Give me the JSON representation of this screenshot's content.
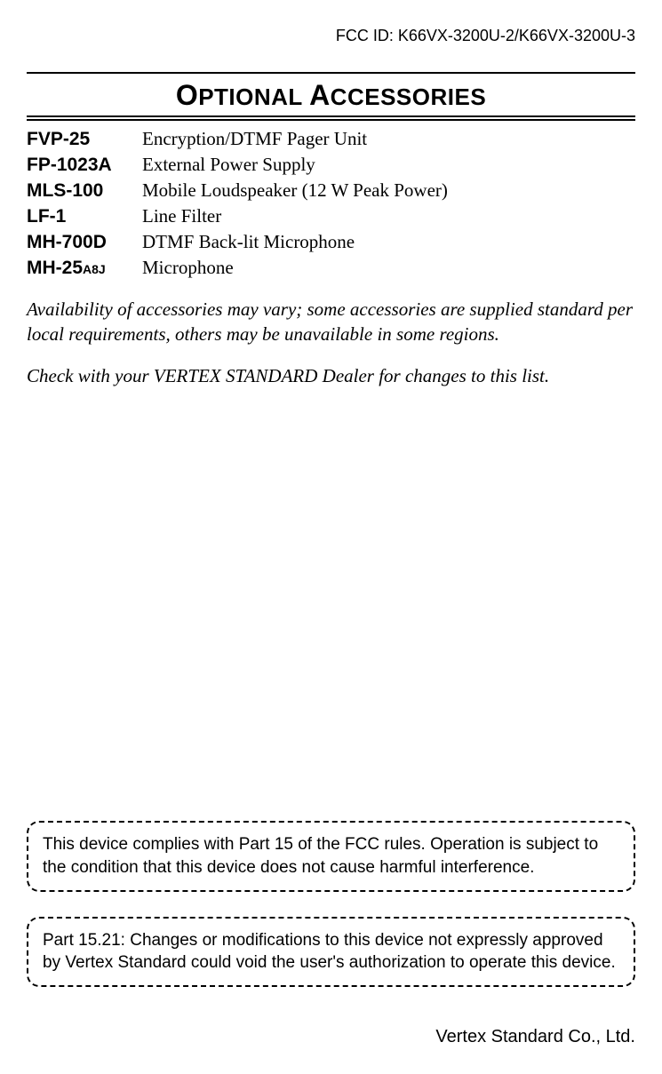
{
  "header": {
    "fcc_id": "FCC ID: K66VX-3200U-2/K66VX-3200U-3"
  },
  "section": {
    "title_part1_cap": "O",
    "title_part1_rest": "PTIONAL ",
    "title_part2_cap": "A",
    "title_part2_rest": "CCESSORIES"
  },
  "accessories": [
    {
      "label": "FVP-25",
      "suffix": "",
      "desc": "Encryption/DTMF Pager Unit"
    },
    {
      "label": "FP-1023A",
      "suffix": "",
      "desc": "External Power Supply"
    },
    {
      "label": "MLS-100",
      "suffix": "",
      "desc": "Mobile Loudspeaker (12 W Peak Power)"
    },
    {
      "label": "LF-1",
      "suffix": "",
      "desc": "Line Filter"
    },
    {
      "label": "MH-700D",
      "suffix": "",
      "desc": "DTMF Back-lit Microphone"
    },
    {
      "label": "MH-25",
      "suffix": "A8J",
      "desc": "Microphone"
    }
  ],
  "notes": {
    "availability": "Availability of accessories may vary; some accessories are supplied standard per local requirements, others may be unavailable in some regions.",
    "check": "Check with your VERTEX STANDARD Dealer for changes to this list."
  },
  "compliance": {
    "box1": "This device complies with Part 15 of the FCC rules. Operation is subject to the condition that this device does not cause harmful interference.",
    "box2": "Part 15.21:  Changes or modifications to this device not expressly approved by Vertex Standard could void the user's authorization to operate this device."
  },
  "footer": {
    "company": "Vertex Standard Co., Ltd."
  },
  "style": {
    "page_bg": "#ffffff",
    "text_color": "#000000",
    "body_font": "Times New Roman",
    "label_font": "Arial",
    "title_fontsize_small": 26,
    "title_fontsize_big": 32,
    "body_fontsize": 21,
    "compliance_fontsize": 19,
    "dash_border_radius": 14
  }
}
